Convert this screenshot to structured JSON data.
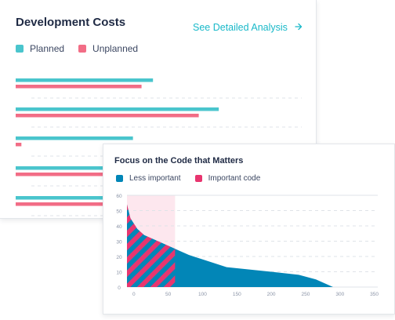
{
  "colors": {
    "planned": "#4ac5cd",
    "unplanned": "#f26d86",
    "less_important": "#0286b7",
    "important": "#e8356f",
    "link": "#19b9c9"
  },
  "dev_costs": {
    "title": "Development Costs",
    "link_label": "See Detailed Analysis",
    "link_icon": "arrow-right-icon",
    "legend": [
      {
        "label": "Planned",
        "color": "#4ac5cd"
      },
      {
        "label": "Unplanned",
        "color": "#f26d86"
      }
    ]
  },
  "code_focus": {
    "title": "Focus on the Code that Matters",
    "legend": [
      {
        "label": "Less important",
        "color": "#0286b7"
      },
      {
        "label": "Important code",
        "color": "#e8356f"
      }
    ]
  },
  "chart_data": [
    {
      "type": "bar",
      "orientation": "horizontal",
      "categories": [
        "",
        "",
        "",
        "",
        ""
      ],
      "series": [
        {
          "name": "Planned",
          "values": [
            0.48,
            0.71,
            0.41,
            0.84,
            0.85
          ]
        },
        {
          "name": "Unplanned",
          "values": [
            0.44,
            0.64,
            0.02,
            0.42,
            0.86
          ]
        }
      ],
      "grid": true,
      "legend": "top-left"
    },
    {
      "type": "area",
      "xlim": [
        -10,
        355
      ],
      "ylim": [
        0,
        60
      ],
      "x_ticks": [
        0,
        50,
        100,
        150,
        200,
        250,
        300,
        350
      ],
      "y_ticks": [
        0,
        10,
        20,
        30,
        40,
        50,
        60
      ],
      "x": [
        -10,
        -5,
        5,
        15,
        35,
        60,
        80,
        135,
        200,
        240,
        265,
        290
      ],
      "y": [
        54,
        45,
        38,
        34,
        30,
        25,
        21,
        13,
        10,
        8,
        5,
        0
      ],
      "important_range": [
        -10,
        60
      ],
      "series": [
        {
          "name": "Less important"
        },
        {
          "name": "Important code"
        }
      ],
      "grid": true,
      "legend": "top-left"
    }
  ]
}
